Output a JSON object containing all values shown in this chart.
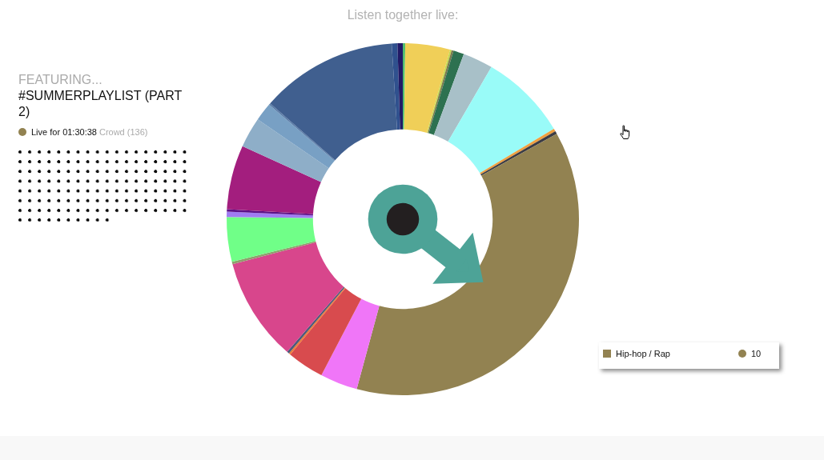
{
  "chart_data": {
    "type": "donut",
    "title": "Listen together live:",
    "categories": [
      null,
      null,
      null,
      null,
      null,
      null,
      null,
      null,
      null,
      "Hip-hop / Rap",
      null,
      null,
      null,
      null,
      null,
      null,
      null,
      null,
      null,
      null,
      null,
      null,
      null,
      null,
      null,
      null
    ],
    "values": [
      0.06,
      1.1,
      0.04,
      0.05,
      0.26,
      0.74,
      2.15,
      0.07,
      0.07,
      10,
      0.92,
      0.91,
      0.04,
      0.06,
      2.54,
      0.06,
      1.1,
      0.13,
      0.06,
      1.58,
      0.75,
      0.45,
      0.04,
      3.37,
      0.14,
      0.13
    ],
    "colors": [
      "#4fbf6f",
      "#f0cf58",
      "#c6d84e",
      "#7a7a4e",
      "#2d7150",
      "#a8c0c8",
      "#99fbf8",
      "#f0a040",
      "#3c3c44",
      "#928251",
      "#f076f8",
      "#d84b4e",
      "#f07a36",
      "#4e5a7a",
      "#d8468c",
      "#8ea06c",
      "#70ff88",
      "#a07cf2",
      "#5c1088",
      "#a31e7e",
      "#8eaec8",
      "#78a0c4",
      "#5a7ca8",
      "#405f8f",
      "#30518e",
      "#221a66"
    ],
    "value_labels": [
      null,
      null,
      null,
      null,
      null,
      null,
      null,
      null,
      null,
      "10",
      null,
      null,
      null,
      null,
      null,
      null,
      null,
      null,
      null,
      null,
      null,
      null,
      null,
      null,
      null,
      null
    ],
    "needle": "Hip-hop / Rap",
    "annotations": [
      "FEATURING...",
      "#SUMMERPLAYLIST (PART 2)",
      "Live for 01:30:38",
      "Crowd (136)"
    ]
  }
}
